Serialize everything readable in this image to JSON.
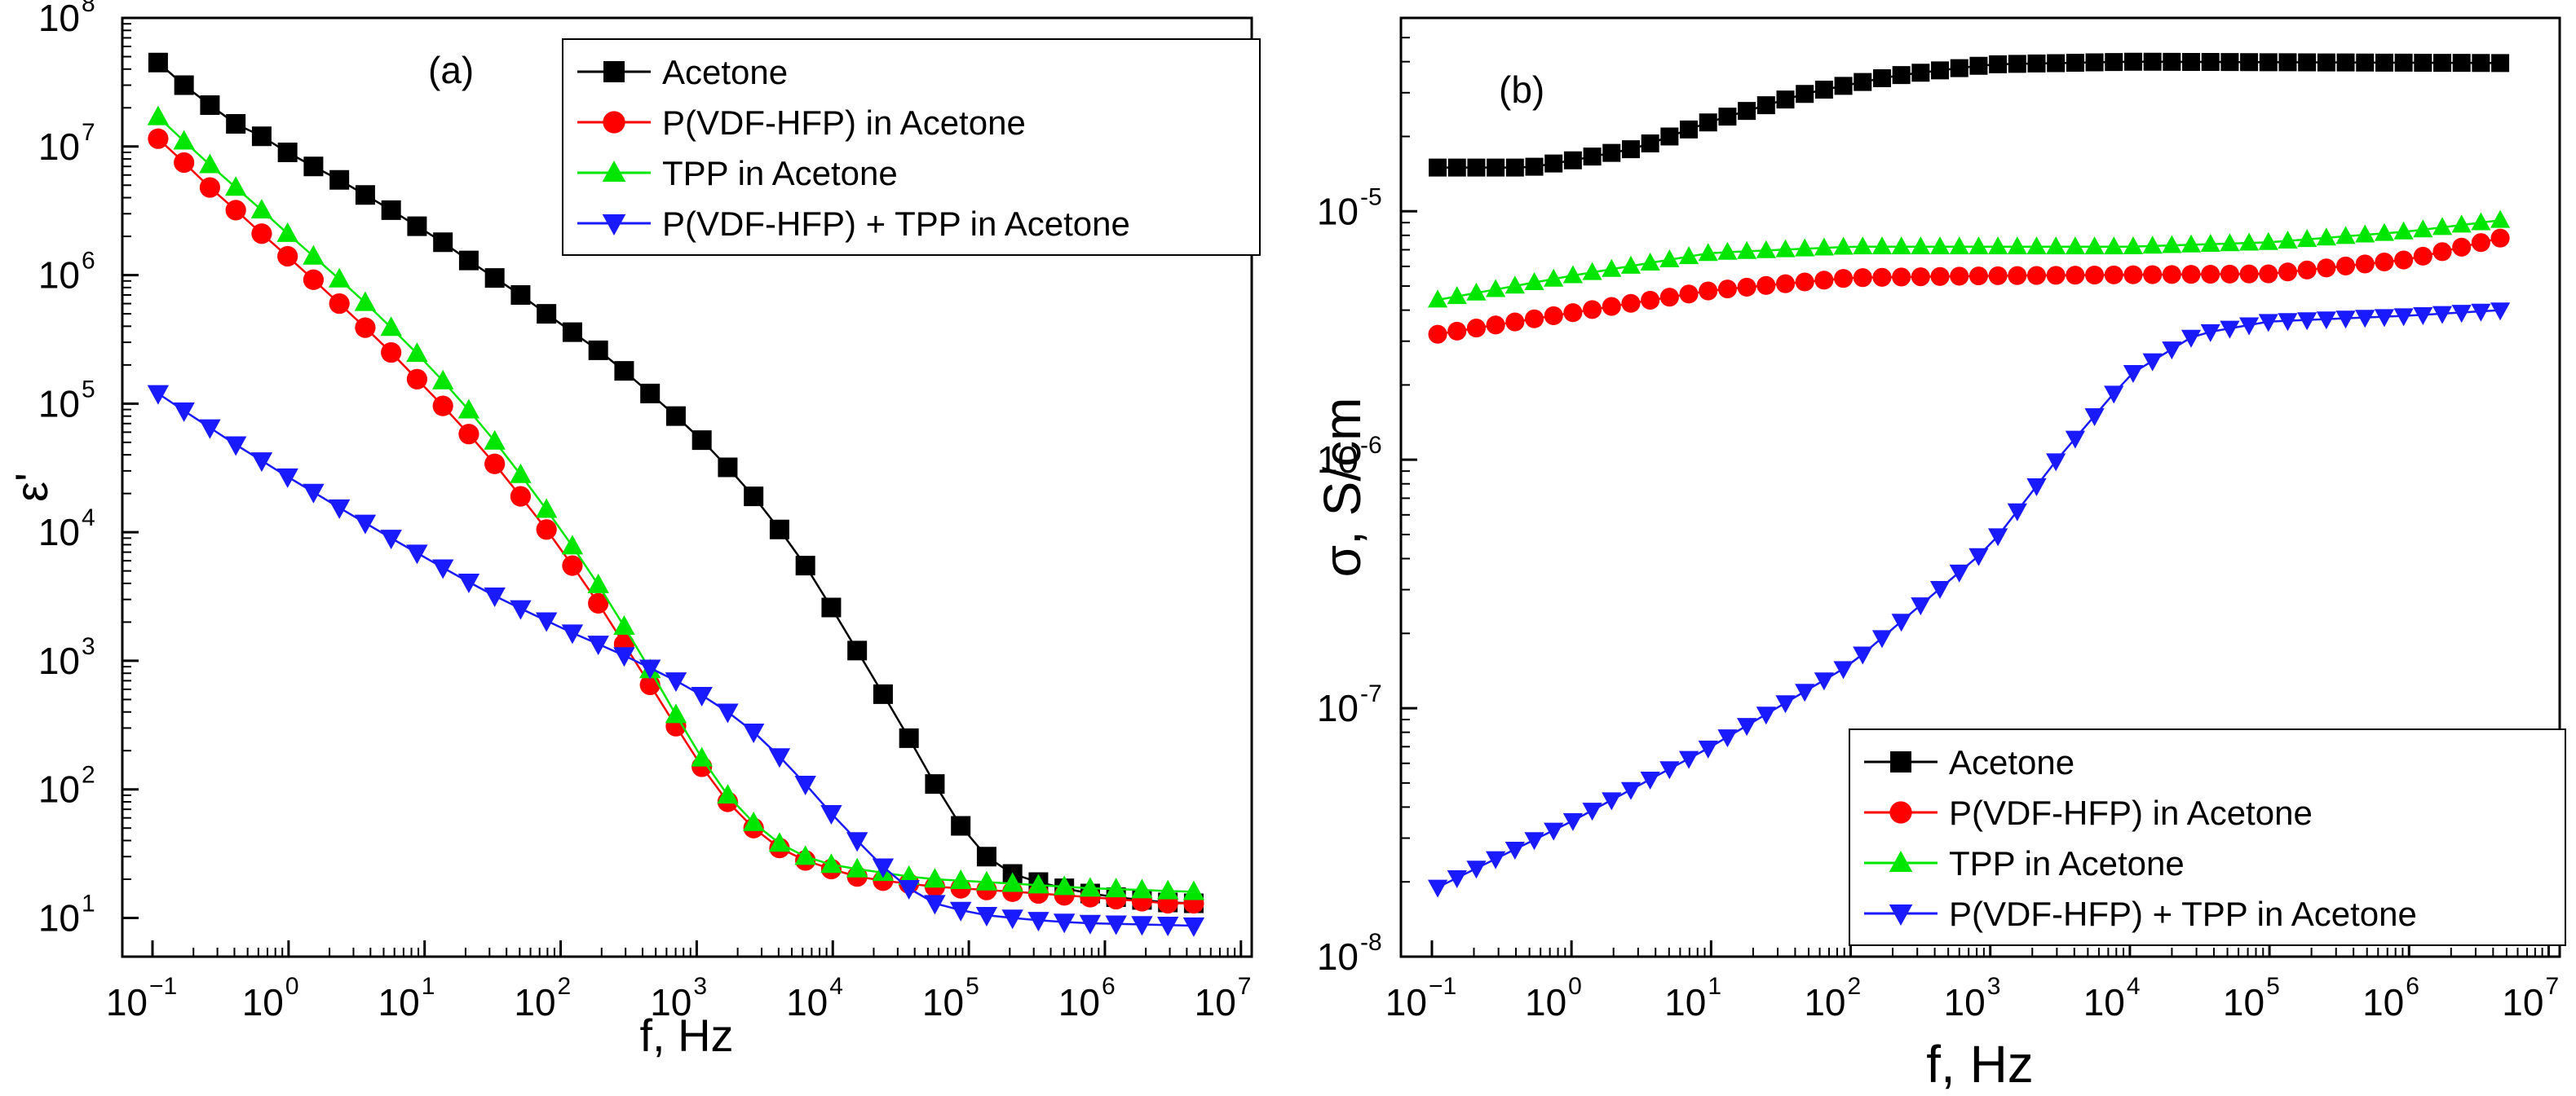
{
  "figure": {
    "colors": {
      "acetone": "#000000",
      "pvdf": "#ff0000",
      "tpp": "#00e600",
      "pvdf_tpp": "#1a1aff"
    }
  },
  "chart_data": [
    {
      "type": "line",
      "panel_label": "(a)",
      "title": "",
      "xlabel": "f, Hz",
      "ylabel": "ε'",
      "xscale": "log",
      "yscale": "log",
      "xlim": [
        0.06,
        12000000
      ],
      "ylim": [
        5,
        100000000
      ],
      "grid": false,
      "legend_position": "top-right",
      "x_ticks": [
        {
          "value": 0.1,
          "base": "10",
          "exp": "−1"
        },
        {
          "value": 1,
          "base": "10",
          "exp": "0"
        },
        {
          "value": 10,
          "base": "10",
          "exp": "1"
        },
        {
          "value": 100,
          "base": "10",
          "exp": "2"
        },
        {
          "value": 1000,
          "base": "10",
          "exp": "3"
        },
        {
          "value": 10000,
          "base": "10",
          "exp": "4"
        },
        {
          "value": 100000,
          "base": "10",
          "exp": "5"
        },
        {
          "value": 1000000,
          "base": "10",
          "exp": "6"
        },
        {
          "value": 10000000,
          "base": "10",
          "exp": "7"
        }
      ],
      "y_ticks": [
        {
          "value": 10,
          "base": "10",
          "exp": "1"
        },
        {
          "value": 100,
          "base": "10",
          "exp": "2"
        },
        {
          "value": 1000,
          "base": "10",
          "exp": "3"
        },
        {
          "value": 10000,
          "base": "10",
          "exp": "4"
        },
        {
          "value": 100000,
          "base": "10",
          "exp": "5"
        },
        {
          "value": 1000000,
          "base": "10",
          "exp": "6"
        },
        {
          "value": 10000000,
          "base": "10",
          "exp": "7"
        },
        {
          "value": 100000000,
          "base": "10",
          "exp": "8"
        }
      ],
      "x_range": [
        0.11,
        4500000
      ],
      "n_points": 41,
      "series": [
        {
          "name": "Acetone",
          "color": "acetone",
          "marker": "square",
          "values": [
            45000000.0,
            30000000.0,
            21000000.0,
            15000000.0,
            12000000.0,
            9000000.0,
            7000000.0,
            5500000.0,
            4200000.0,
            3200000.0,
            2400000.0,
            1800000.0,
            1300000.0,
            950000.0,
            700000.0,
            500000.0,
            360000.0,
            260000.0,
            180000.0,
            120000.0,
            80000.0,
            52000.0,
            32000.0,
            19000.0,
            10500.0,
            5500.0,
            2600.0,
            1200.0,
            550,
            250,
            110,
            52,
            30,
            22,
            19,
            17,
            15.5,
            14.5,
            13.8,
            13.2,
            13
          ]
        },
        {
          "name": "P(VDF-HFP) in Acetone",
          "color": "pvdf",
          "marker": "circle",
          "values": [
            11500000.0,
            7500000.0,
            4800000.0,
            3200000.0,
            2100000.0,
            1400000.0,
            920000.0,
            600000.0,
            390000.0,
            250000.0,
            155000.0,
            96000.0,
            58000.0,
            34000.0,
            19000.0,
            10500.0,
            5500.0,
            2800.0,
            1350.0,
            650,
            310,
            150,
            80,
            50,
            35,
            28,
            24,
            21,
            19.5,
            18.5,
            17.5,
            17,
            16.5,
            16,
            15.5,
            15,
            14.5,
            14,
            13.5,
            13,
            13
          ]
        },
        {
          "name": "TPP in Acetone",
          "color": "tpp",
          "marker": "triangle-up",
          "values": [
            17000000.0,
            11000000.0,
            7200000.0,
            4800000.0,
            3200000.0,
            2100000.0,
            1400000.0,
            930000.0,
            610000.0,
            390000.0,
            245000.0,
            150000.0,
            89000.0,
            51000.0,
            28000.0,
            15000.0,
            7800.0,
            3900.0,
            1850.0,
            850,
            380,
            175,
            90,
            55,
            38,
            30,
            26,
            24,
            22.5,
            21,
            20,
            19.5,
            19,
            18.5,
            18,
            17.5,
            17,
            16.8,
            16.5,
            16.2,
            16
          ]
        },
        {
          "name": "P(VDF-HFP) + TPP in Acetone",
          "color": "pvdf_tpp",
          "marker": "triangle-down",
          "values": [
            120000.0,
            88000.0,
            65000.0,
            48000.0,
            36000.0,
            27000.0,
            20500.0,
            15500.0,
            11800.0,
            9000.0,
            6900.0,
            5300.0,
            4100.0,
            3200.0,
            2550.0,
            2050.0,
            1650.0,
            1350.0,
            1100.0,
            880,
            700,
            540,
            400,
            280,
            180,
            110,
            65,
            40,
            25,
            17,
            13,
            11.5,
            10.5,
            10,
            9.6,
            9.3,
            9.1,
            9,
            8.9,
            8.8,
            8.7
          ]
        }
      ]
    },
    {
      "type": "line",
      "panel_label": "(b)",
      "title": "",
      "xlabel": "f, Hz",
      "ylabel": "σ, S/cm",
      "xscale": "log",
      "yscale": "log",
      "xlim": [
        0.06,
        12000000
      ],
      "ylim": [
        1e-08,
        6e-05
      ],
      "grid": false,
      "legend_position": "bottom-right",
      "x_ticks": [
        {
          "value": 0.1,
          "base": "10",
          "exp": "−1"
        },
        {
          "value": 1,
          "base": "10",
          "exp": "0"
        },
        {
          "value": 10,
          "base": "10",
          "exp": "1"
        },
        {
          "value": 100,
          "base": "10",
          "exp": "2"
        },
        {
          "value": 1000,
          "base": "10",
          "exp": "3"
        },
        {
          "value": 10000,
          "base": "10",
          "exp": "4"
        },
        {
          "value": 100000,
          "base": "10",
          "exp": "5"
        },
        {
          "value": 1000000,
          "base": "10",
          "exp": "6"
        },
        {
          "value": 10000000,
          "base": "10",
          "exp": "7"
        }
      ],
      "y_ticks": [
        {
          "value": 1e-08,
          "base": "10",
          "exp": "-8"
        },
        {
          "value": 1e-07,
          "base": "10",
          "exp": "-7"
        },
        {
          "value": 1e-06,
          "base": "10",
          "exp": "-6"
        },
        {
          "value": 1e-05,
          "base": "10",
          "exp": "-5"
        }
      ],
      "x_range": [
        0.11,
        4500000
      ],
      "n_points": 56,
      "series": [
        {
          "name": "Acetone",
          "color": "acetone",
          "marker": "square",
          "anchors": [
            [
              0.11,
              1.5e-05
            ],
            [
              0.5,
              1.5e-05
            ],
            [
              1,
              1.6e-05
            ],
            [
              3,
              1.8e-05
            ],
            [
              10,
              2.3e-05
            ],
            [
              50,
              3e-05
            ],
            [
              200,
              3.5e-05
            ],
            [
              1000,
              3.9e-05
            ],
            [
              10000,
              4e-05
            ],
            [
              4500000,
              3.95e-05
            ]
          ]
        },
        {
          "name": "P(VDF-HFP) in Acetone",
          "color": "pvdf",
          "marker": "circle",
          "anchors": [
            [
              0.11,
              3.2e-06
            ],
            [
              1,
              3.9e-06
            ],
            [
              10,
              4.8e-06
            ],
            [
              100,
              5.4e-06
            ],
            [
              1000,
              5.5e-06
            ],
            [
              100000,
              5.6e-06
            ],
            [
              1000000,
              6.4e-06
            ],
            [
              4500000,
              7.8e-06
            ]
          ]
        },
        {
          "name": "TPP in Acetone",
          "color": "tpp",
          "marker": "triangle-up",
          "anchors": [
            [
              0.11,
              4.4e-06
            ],
            [
              1,
              5.5e-06
            ],
            [
              10,
              6.8e-06
            ],
            [
              100,
              7.2e-06
            ],
            [
              10000,
              7.2e-06
            ],
            [
              100000,
              7.5e-06
            ],
            [
              1000000,
              8.3e-06
            ],
            [
              4500000,
              9.2e-06
            ]
          ]
        },
        {
          "name": "P(VDF-HFP) + TPP in Acetone",
          "color": "pvdf_tpp",
          "marker": "triangle-down",
          "anchors": [
            [
              0.11,
              1.9e-08
            ],
            [
              1,
              3.5e-08
            ],
            [
              10,
              7e-08
            ],
            [
              100,
              1.5e-07
            ],
            [
              1000,
              4.5e-07
            ],
            [
              3000,
              1e-06
            ],
            [
              10000,
              2.2e-06
            ],
            [
              30000,
              3.2e-06
            ],
            [
              100000,
              3.6e-06
            ],
            [
              1000000,
              3.8e-06
            ],
            [
              4500000,
              4e-06
            ]
          ]
        }
      ]
    }
  ]
}
